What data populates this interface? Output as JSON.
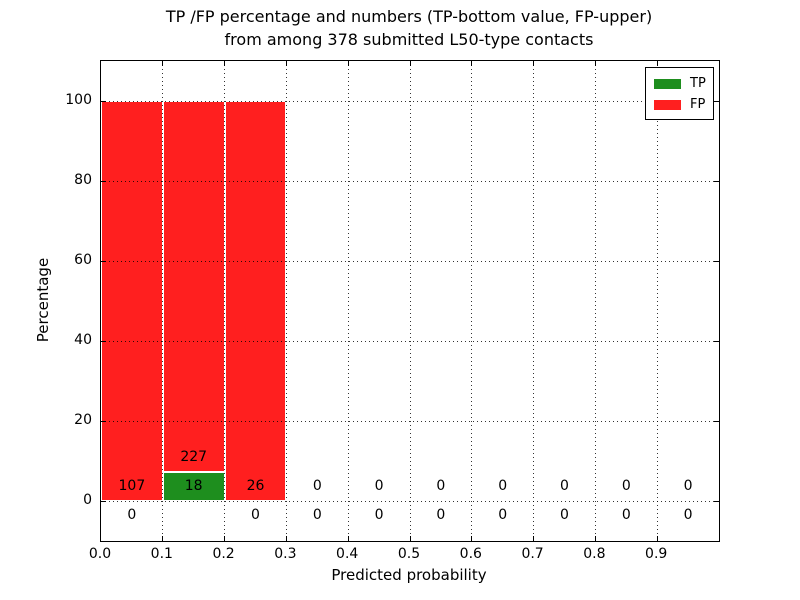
{
  "figure": {
    "title_line1": "TP /FP percentage and numbers (TP-bottom value, FP-upper)",
    "title_line2": "from among 378 submitted L50-type contacts"
  },
  "chart_data": {
    "type": "bar",
    "stacked": true,
    "title": "TP /FP percentage and numbers (TP-bottom value, FP-upper)\nfrom among 378 submitted L50-type contacts",
    "total_contacts": 378,
    "xlabel": "Predicted probability",
    "ylabel": "Percentage",
    "x_tick_labels": [
      "0.0",
      "0.1",
      "0.2",
      "0.3",
      "0.4",
      "0.5",
      "0.6",
      "0.7",
      "0.8",
      "0.9"
    ],
    "y_ticks": [
      0,
      20,
      40,
      60,
      80,
      100
    ],
    "xlim": [
      0.0,
      1.0
    ],
    "ylim": [
      -10,
      110
    ],
    "grid": "dotted",
    "legend_position": "upper right",
    "series": [
      {
        "name": "TP",
        "color": "#1e8e1e"
      },
      {
        "name": "FP",
        "color": "#ff1f1f"
      }
    ],
    "bins": [
      {
        "range": [
          0.0,
          0.1
        ],
        "tp": 0,
        "fp": 107,
        "tp_pct": 0,
        "fp_pct": 100
      },
      {
        "range": [
          0.1,
          0.2
        ],
        "tp": 18,
        "fp": 227,
        "tp_pct": 7.3,
        "fp_pct": 92.7
      },
      {
        "range": [
          0.2,
          0.3
        ],
        "tp": 0,
        "fp": 26,
        "tp_pct": 0,
        "fp_pct": 100
      },
      {
        "range": [
          0.3,
          0.4
        ],
        "tp": 0,
        "fp": 0,
        "tp_pct": 0,
        "fp_pct": 0
      },
      {
        "range": [
          0.4,
          0.5
        ],
        "tp": 0,
        "fp": 0,
        "tp_pct": 0,
        "fp_pct": 0
      },
      {
        "range": [
          0.5,
          0.6
        ],
        "tp": 0,
        "fp": 0,
        "tp_pct": 0,
        "fp_pct": 0
      },
      {
        "range": [
          0.6,
          0.7
        ],
        "tp": 0,
        "fp": 0,
        "tp_pct": 0,
        "fp_pct": 0
      },
      {
        "range": [
          0.7,
          0.8
        ],
        "tp": 0,
        "fp": 0,
        "tp_pct": 0,
        "fp_pct": 0
      },
      {
        "range": [
          0.8,
          0.9
        ],
        "tp": 0,
        "fp": 0,
        "tp_pct": 0,
        "fp_pct": 0
      },
      {
        "range": [
          0.9,
          1.0
        ],
        "tp": 0,
        "fp": 0,
        "tp_pct": 0,
        "fp_pct": 0
      }
    ]
  }
}
